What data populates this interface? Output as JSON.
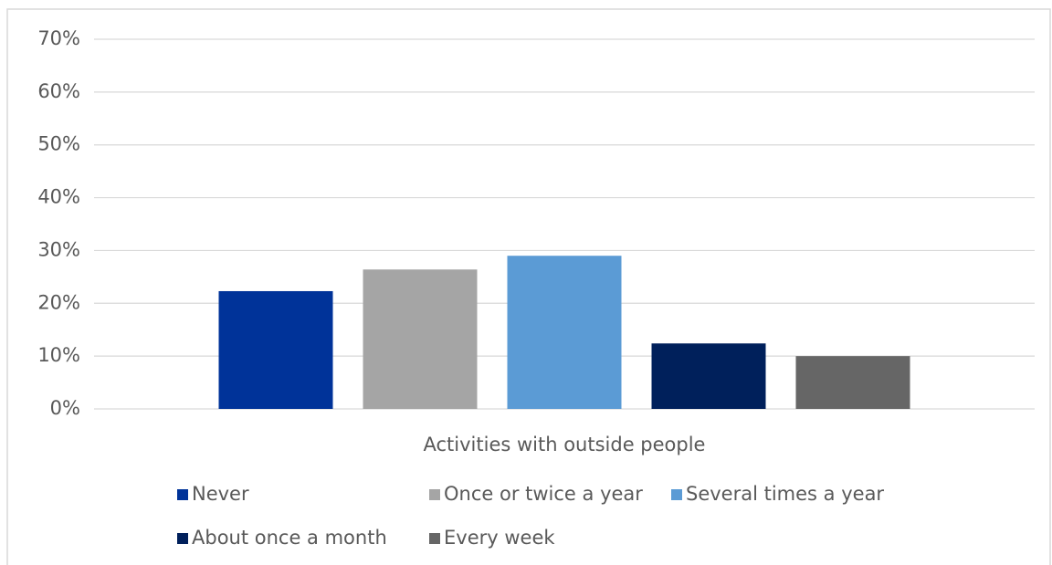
{
  "chart_data": {
    "type": "bar",
    "categories": [
      "Activities with outside people"
    ],
    "series": [
      {
        "name": "Never",
        "color": "#003399",
        "values": [
          22.3
        ]
      },
      {
        "name": "Once or twice a year",
        "color": "#a5a5a5",
        "values": [
          26.4
        ]
      },
      {
        "name": "Several times a year",
        "color": "#5b9bd5",
        "values": [
          29.0
        ]
      },
      {
        "name": "About once a month",
        "color": "#00205b",
        "values": [
          12.4
        ]
      },
      {
        "name": "Every week",
        "color": "#666666",
        "values": [
          10.0
        ]
      }
    ],
    "ylim": [
      0,
      70
    ],
    "yticks": [
      {
        "value": 0,
        "label": "0%"
      },
      {
        "value": 10,
        "label": "10%"
      },
      {
        "value": 20,
        "label": "20%"
      },
      {
        "value": 30,
        "label": "30%"
      },
      {
        "value": 40,
        "label": "40%"
      },
      {
        "value": 50,
        "label": "50%"
      },
      {
        "value": 60,
        "label": "60%"
      },
      {
        "value": 70,
        "label": "70%"
      }
    ],
    "grid": true,
    "legend": "bottom"
  }
}
